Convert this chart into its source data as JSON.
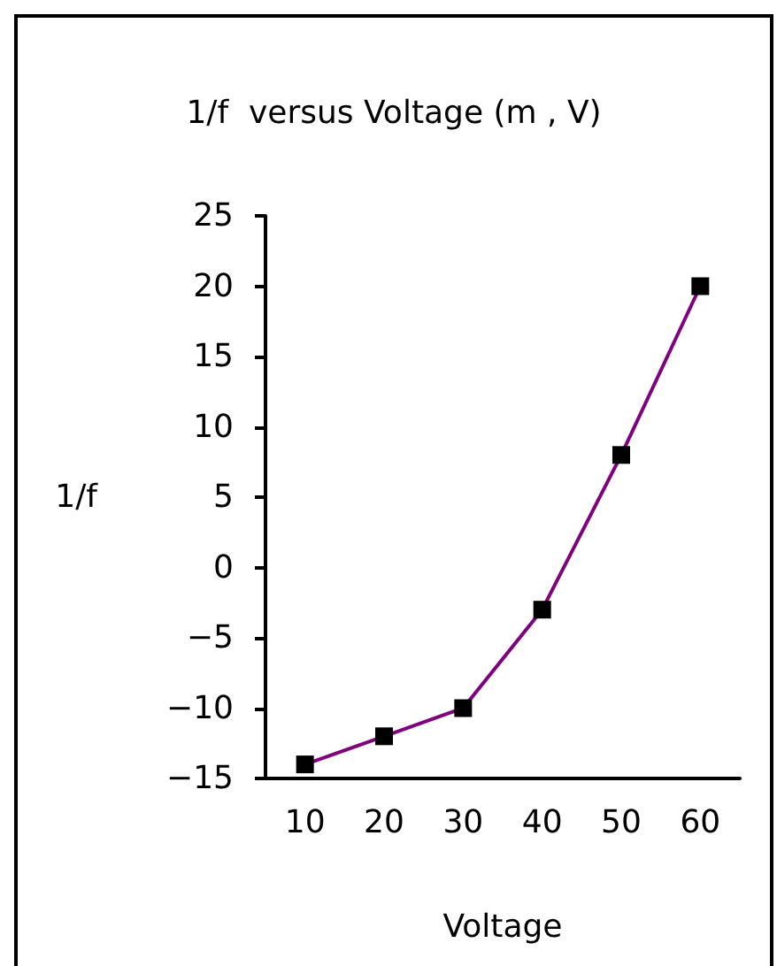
{
  "chart_data": {
    "type": "line",
    "title": "1/f  versus Voltage (m , V)",
    "xlabel": "Voltage",
    "ylabel": "1/f",
    "categories": [
      "10",
      "20",
      "30",
      "40",
      "50",
      "60"
    ],
    "series": [
      {
        "color": "#800080",
        "values": [
          -14,
          -12,
          -10,
          -3,
          8,
          20
        ]
      }
    ],
    "ylim": [
      -15,
      25
    ],
    "yticks": [
      -15,
      -10,
      -5,
      0,
      5,
      10,
      15,
      20,
      25
    ],
    "grid": false,
    "marker": "square",
    "line_style": "solid"
  }
}
